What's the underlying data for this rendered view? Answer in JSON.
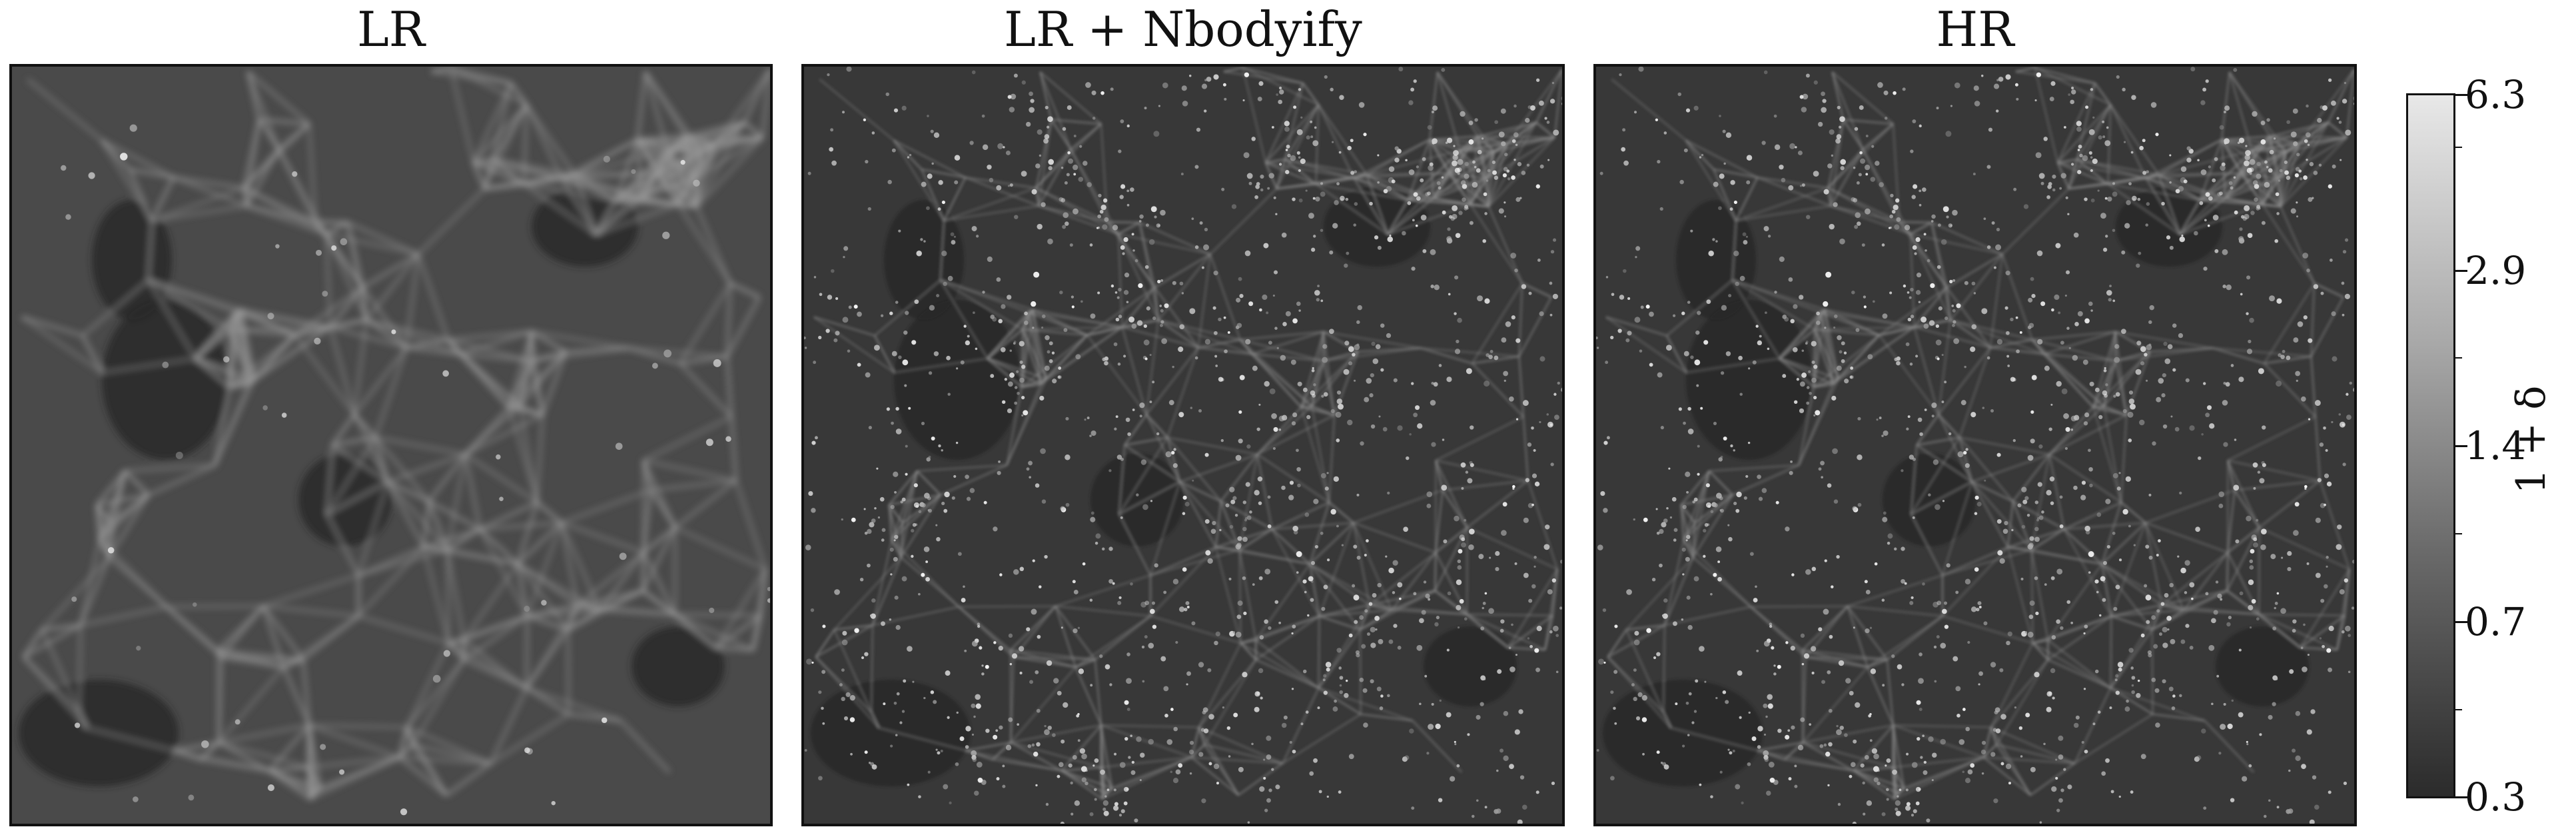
{
  "panels": [
    {
      "title": "LR",
      "style": "smooth"
    },
    {
      "title": "LR + Nbodyify",
      "style": "grainy"
    },
    {
      "title": "HR",
      "style": "grainy"
    }
  ],
  "colorbar": {
    "label": "1 + δ",
    "colormap": "gray",
    "scale": "log",
    "ticks": [
      "6.3",
      "2.9",
      "1.4",
      "0.7",
      "0.3"
    ],
    "range": [
      0.3,
      6.3
    ]
  }
}
